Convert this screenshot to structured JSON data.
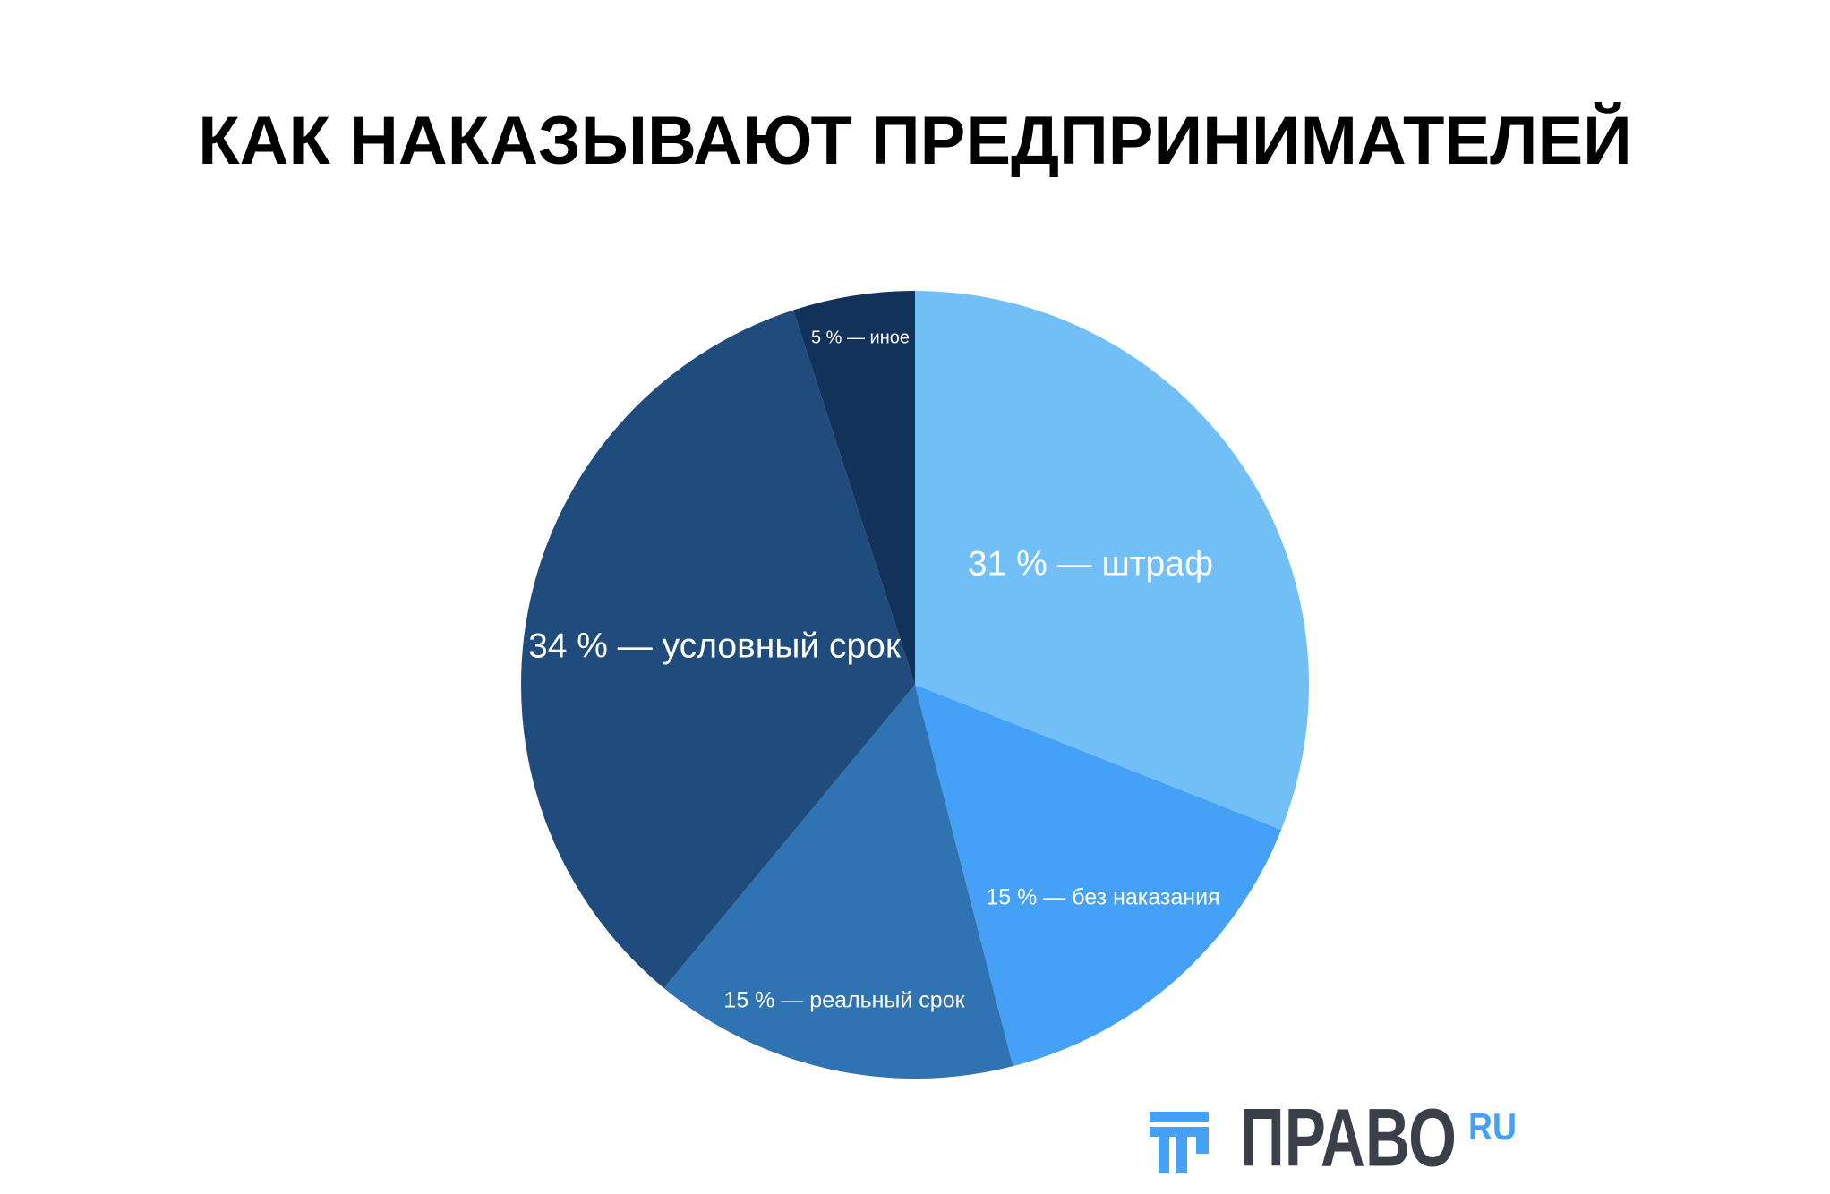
{
  "chart_data": {
    "type": "pie",
    "title": "КАК НАКАЗЫВАЮТ ПРЕДПРИНИМАТЕЛЕЙ",
    "values": [
      31,
      15,
      15,
      34,
      5
    ],
    "value_labels": [
      "31 % — штраф",
      "15 % — без наказания",
      "15 % — реальный срок",
      "34 % — условный срок",
      "5 % — иное"
    ],
    "colors": [
      "#72bff8",
      "#44a1f6",
      "#2f73b3",
      "#1f4c7c",
      "#13325a"
    ]
  },
  "logo": {
    "name": "ПРАВО",
    "suffix": "RU"
  }
}
